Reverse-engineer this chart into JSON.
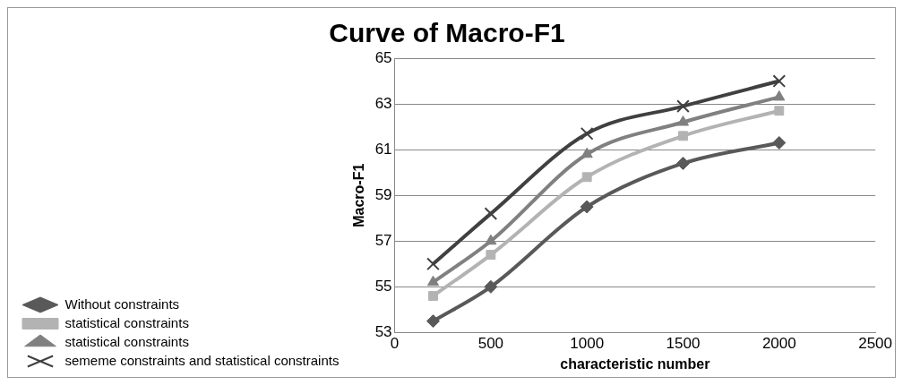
{
  "chart_data": {
    "type": "line",
    "title": "Curve of Macro-F1",
    "xlabel": "characteristic number",
    "ylabel": "Macro-F1",
    "x": [
      200,
      500,
      1000,
      1500,
      2000
    ],
    "series": [
      {
        "name": "Without constraints",
        "color": "#595959",
        "marker": "diamond",
        "values": [
          53.5,
          55.0,
          58.5,
          60.4,
          61.3
        ]
      },
      {
        "name": "statistical constraints",
        "color": "#b3b3b3",
        "marker": "square",
        "values": [
          54.6,
          56.4,
          59.8,
          61.6,
          62.7
        ]
      },
      {
        "name": "statistical constraints",
        "color": "#808080",
        "marker": "triangle",
        "values": [
          55.2,
          57.0,
          60.8,
          62.2,
          63.3
        ]
      },
      {
        "name": "sememe constraints and statistical constraints",
        "color": "#404040",
        "marker": "cross",
        "values": [
          56.0,
          58.2,
          61.7,
          62.9,
          64.0
        ]
      }
    ],
    "xlim": [
      0,
      2500
    ],
    "xticks": [
      0,
      500,
      1000,
      1500,
      2000,
      2500
    ],
    "ylim": [
      53,
      65
    ],
    "yticks": [
      53,
      55,
      57,
      59,
      61,
      63,
      65
    ],
    "grid": "y",
    "legend": "bottom left",
    "line_style": "solid"
  }
}
